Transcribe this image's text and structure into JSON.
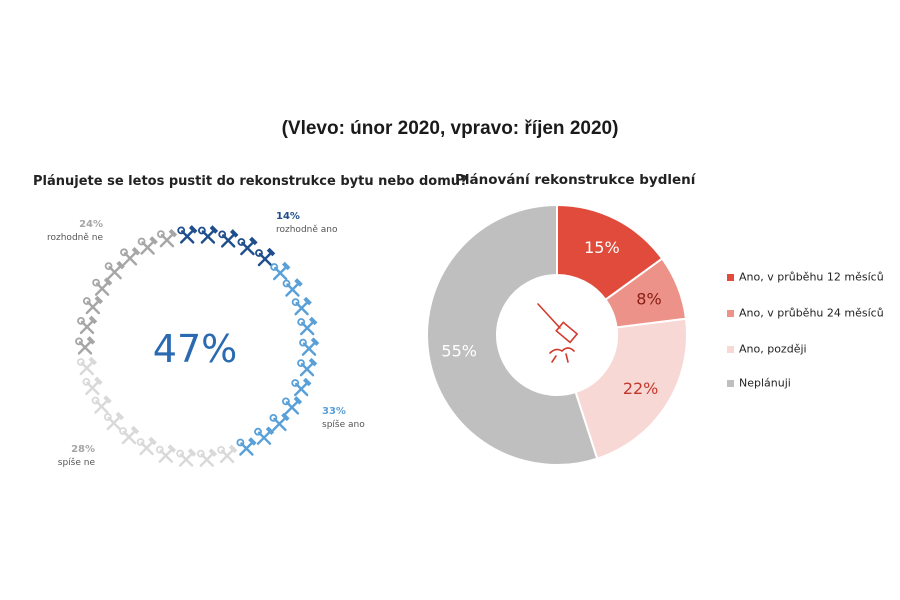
{
  "page": {
    "main_title": "(Vlevo: únor 2020, vpravo: říjen 2020)"
  },
  "chart_data": [
    {
      "type": "pie",
      "variant": "icon-ring",
      "title": "Plánujete se letos pustit do rekonstrukce bytu nebo domu?",
      "center_label": "47%",
      "icon": "hammer-wrench-icon",
      "segments": [
        {
          "name": "rozhodně ano",
          "value": 14,
          "label": "14%",
          "color": "#1f4e8c"
        },
        {
          "name": "spíše ano",
          "value": 33,
          "label": "33%",
          "color": "#5aa0d8"
        },
        {
          "name": "spíše ne",
          "value": 28,
          "label": "28%",
          "color": "#d9d9d9"
        },
        {
          "name": "rozhodně ne",
          "value": 24,
          "label": "24%",
          "color": "#a6a6a6"
        }
      ]
    },
    {
      "type": "pie",
      "variant": "donut",
      "title": "Plánování rekonstrukce bydlení",
      "center_icon": "hammer-icon",
      "series": [
        {
          "name": "Ano, v průběhu 12 měsíců",
          "value": 15,
          "label": "15%",
          "color": "#e04b3c",
          "label_color": "#ffffff"
        },
        {
          "name": "Ano, v průběhu 24 měsíců",
          "value": 8,
          "label": "8%",
          "color": "#ec9288",
          "label_color": "#8a1d14"
        },
        {
          "name": "Ano, později",
          "value": 22,
          "label": "22%",
          "color": "#f8d8d4",
          "label_color": "#c0392b"
        },
        {
          "name": "Neplánuji",
          "value": 55,
          "label": "55%",
          "color": "#bfbfbf",
          "label_color": "#ffffff"
        }
      ]
    }
  ]
}
